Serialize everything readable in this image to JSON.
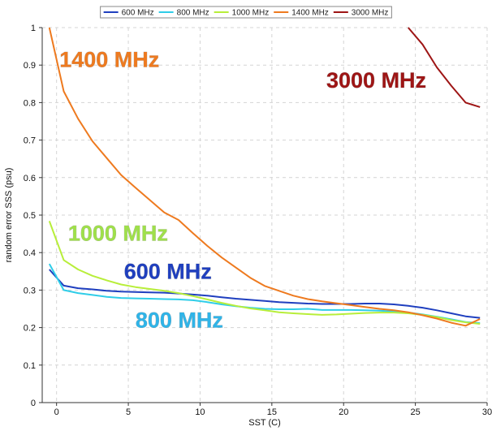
{
  "chart_data": {
    "type": "line",
    "xlabel": "SST (C)",
    "ylabel": "random error SSS (psu)",
    "xlim": [
      -1,
      30
    ],
    "ylim": [
      0,
      1
    ],
    "xticks": [
      0,
      5,
      10,
      15,
      20,
      25,
      30
    ],
    "yticks": [
      0,
      0.1,
      0.2,
      0.3,
      0.4,
      0.5,
      0.6,
      0.7,
      0.8,
      0.9,
      1
    ],
    "ytick_labels": [
      "0",
      "0.1",
      "0.2",
      "0.3",
      "0.4",
      "0.5",
      "0.6",
      "0.7",
      "0.8",
      "0.9",
      "1"
    ],
    "grid": true,
    "legend_position": "top-center",
    "series": [
      {
        "name": "600 MHz",
        "color": "#1f3fbf",
        "x": [
          -0.5,
          0.5,
          1.5,
          2.5,
          3.5,
          4.5,
          5.5,
          6.5,
          7.5,
          8.5,
          9.5,
          10.5,
          11.5,
          12.5,
          13.5,
          14.5,
          15.5,
          16.5,
          17.5,
          18.5,
          19.5,
          20.5,
          21.5,
          22.5,
          23.5,
          24.5,
          25.5,
          26.5,
          27.5,
          28.5,
          29.5
        ],
        "y": [
          0.355,
          0.312,
          0.305,
          0.302,
          0.298,
          0.296,
          0.295,
          0.294,
          0.293,
          0.291,
          0.288,
          0.285,
          0.281,
          0.277,
          0.274,
          0.271,
          0.268,
          0.266,
          0.264,
          0.263,
          0.263,
          0.263,
          0.264,
          0.264,
          0.262,
          0.258,
          0.253,
          0.246,
          0.238,
          0.23,
          0.226
        ]
      },
      {
        "name": "800 MHz",
        "color": "#2fcde8",
        "x": [
          -0.5,
          0.5,
          1.5,
          2.5,
          3.5,
          4.5,
          5.5,
          6.5,
          7.5,
          8.5,
          9.5,
          10.5,
          11.5,
          12.5,
          13.5,
          14.5,
          15.5,
          16.5,
          17.5,
          18.5,
          19.5,
          20.5,
          21.5,
          22.5,
          23.5,
          24.5,
          25.5,
          26.5,
          27.5,
          28.5,
          29.5
        ],
        "y": [
          0.37,
          0.3,
          0.292,
          0.287,
          0.282,
          0.279,
          0.278,
          0.277,
          0.276,
          0.275,
          0.273,
          0.268,
          0.262,
          0.257,
          0.253,
          0.25,
          0.249,
          0.249,
          0.25,
          0.247,
          0.247,
          0.247,
          0.246,
          0.245,
          0.243,
          0.24,
          0.235,
          0.229,
          0.222,
          0.215,
          0.212
        ]
      },
      {
        "name": "1000 MHz",
        "color": "#b8ee3a",
        "x": [
          -0.5,
          0.5,
          1.5,
          2.5,
          3.5,
          4.5,
          5.5,
          6.5,
          7.5,
          8.5,
          9.5,
          10.5,
          11.5,
          12.5,
          13.5,
          14.5,
          15.5,
          16.5,
          17.5,
          18.5,
          19.5,
          20.5,
          21.5,
          22.5,
          23.5,
          24.5,
          25.5,
          26.5,
          27.5,
          28.5,
          29.5
        ],
        "y": [
          0.484,
          0.38,
          0.355,
          0.338,
          0.326,
          0.315,
          0.308,
          0.303,
          0.298,
          0.292,
          0.284,
          0.275,
          0.266,
          0.258,
          0.251,
          0.246,
          0.241,
          0.238,
          0.236,
          0.234,
          0.235,
          0.237,
          0.239,
          0.24,
          0.24,
          0.238,
          0.234,
          0.228,
          0.22,
          0.214,
          0.21
        ]
      },
      {
        "name": "1400 MHz",
        "color": "#ee7a1f",
        "x": [
          -0.5,
          0.5,
          1.5,
          2.5,
          3.5,
          4.5,
          5.5,
          6.5,
          7.5,
          8.5,
          9.5,
          10.5,
          11.5,
          12.5,
          13.5,
          14.5,
          15.5,
          16.5,
          17.5,
          18.5,
          19.5,
          20.5,
          21.5,
          22.5,
          23.5,
          24.5,
          25.5,
          26.5,
          27.5,
          28.5,
          29.5
        ],
        "y": [
          1.0,
          0.83,
          0.757,
          0.697,
          0.652,
          0.607,
          0.573,
          0.54,
          0.507,
          0.487,
          0.452,
          0.418,
          0.387,
          0.36,
          0.333,
          0.311,
          0.298,
          0.285,
          0.276,
          0.27,
          0.265,
          0.26,
          0.255,
          0.25,
          0.246,
          0.241,
          0.233,
          0.224,
          0.213,
          0.205,
          0.223
        ]
      },
      {
        "name": "3000 MHz",
        "color": "#9e1515",
        "x": [
          24.5,
          25.5,
          26.5,
          27.5,
          28.5,
          29.5
        ],
        "y": [
          1.0,
          0.955,
          0.894,
          0.845,
          0.8,
          0.788
        ]
      }
    ],
    "annotations": [
      {
        "text": "1400 MHz",
        "color": "#ee7a1f",
        "x": 0.2,
        "y": 0.895
      },
      {
        "text": "3000 MHz",
        "color": "#9e1515",
        "x": 18.8,
        "y": 0.84
      },
      {
        "text": "1000 MHz",
        "color": "#9fe04a",
        "x": 0.8,
        "y": 0.432
      },
      {
        "text": "600 MHz",
        "color": "#1f3fbf",
        "x": 4.7,
        "y": 0.33
      },
      {
        "text": "800 MHz",
        "color": "#2fb4e8",
        "x": 5.5,
        "y": 0.2
      }
    ]
  }
}
